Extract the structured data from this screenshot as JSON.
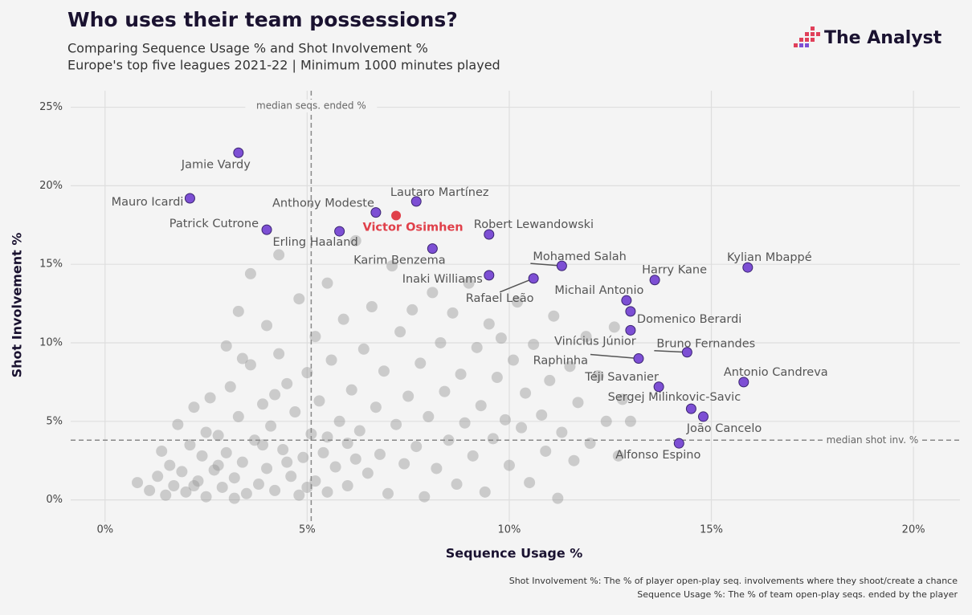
{
  "chart_data": {
    "type": "scatter",
    "title": "Who uses their team possessions?",
    "subtitle": [
      "Comparing Sequence Usage % and Shot Involvement %",
      "Europe's top five leagues 2021-22 | Minimum 1000 minutes played"
    ],
    "logo": "The Analyst",
    "x_label": "Sequence Usage %",
    "y_label": "Shot Involvement %",
    "footnotes": [
      "Shot Involvement %: The % of player open-play seq. involvements where they shoot/create a chance",
      "Sequence Usage %: The % of team open-play seqs. ended by the player"
    ],
    "xlim": [
      -0.85,
      21.15
    ],
    "ylim": [
      -1.4,
      26.05
    ],
    "xticks": [
      {
        "value": 0,
        "label": "0%"
      },
      {
        "value": 5,
        "label": "5%"
      },
      {
        "value": 10,
        "label": "10%"
      },
      {
        "value": 15,
        "label": "15%"
      },
      {
        "value": 20,
        "label": "20%"
      }
    ],
    "yticks": [
      {
        "value": 0,
        "label": "0%"
      },
      {
        "value": 5,
        "label": "5%"
      },
      {
        "value": 10,
        "label": "10%"
      },
      {
        "value": 15,
        "label": "15%"
      },
      {
        "value": 20,
        "label": "20%"
      },
      {
        "value": 25,
        "label": "25%"
      }
    ],
    "grid": true,
    "x_median": {
      "value": 5.1,
      "label": "median seqs. ended %"
    },
    "y_median": {
      "value": 3.8,
      "label": "median shot inv. %"
    },
    "color": "#8f8f8f",
    "x": [
      0.8,
      1.1,
      1.3,
      1.5,
      1.6,
      1.7,
      1.8,
      1.9,
      2.0,
      2.1,
      2.2,
      2.3,
      2.4,
      2.5,
      2.6,
      2.7,
      2.8,
      2.9,
      3.0,
      3.0,
      3.1,
      3.2,
      3.3,
      3.3,
      3.4,
      3.5,
      3.6,
      3.6,
      3.7,
      3.8,
      3.9,
      4.0,
      4.0,
      4.1,
      4.2,
      4.3,
      4.3,
      4.4,
      4.5,
      4.6,
      4.7,
      4.8,
      4.8,
      4.9,
      5.0,
      5.1,
      5.2,
      5.2,
      5.3,
      5.4,
      5.5,
      5.5,
      5.6,
      5.7,
      5.8,
      5.9,
      6.0,
      6.0,
      6.1,
      6.2,
      6.3,
      6.4,
      6.5,
      6.6,
      6.7,
      6.8,
      6.9,
      7.0,
      7.1,
      7.2,
      7.3,
      7.4,
      7.5,
      7.6,
      7.7,
      7.8,
      7.9,
      8.0,
      8.1,
      8.2,
      8.3,
      8.4,
      8.5,
      8.6,
      8.7,
      8.8,
      8.9,
      9.0,
      9.1,
      9.2,
      9.3,
      9.4,
      9.5,
      9.6,
      9.7,
      9.8,
      9.9,
      10.0,
      10.1,
      10.2,
      10.3,
      10.4,
      10.5,
      10.6,
      10.8,
      10.9,
      11.0,
      11.1,
      11.2,
      11.3,
      11.5,
      11.6,
      11.7,
      11.9,
      12.0,
      12.2,
      12.4,
      12.6,
      12.7,
      12.8,
      13.0,
      1.4,
      2.2,
      2.8,
      3.2,
      3.9,
      4.5,
      5.0,
      5.5,
      6.2,
      4.2,
      3.4,
      2.5
    ],
    "values": [
      1.1,
      0.6,
      1.5,
      0.3,
      2.2,
      0.9,
      4.8,
      1.8,
      0.5,
      3.5,
      5.9,
      1.2,
      2.8,
      0.2,
      6.5,
      1.9,
      4.1,
      0.8,
      9.8,
      3.0,
      7.2,
      1.4,
      12.0,
      5.3,
      2.4,
      0.4,
      8.6,
      14.4,
      3.8,
      1.0,
      6.1,
      11.1,
      2.0,
      4.7,
      0.6,
      9.3,
      15.6,
      3.2,
      7.4,
      1.5,
      5.6,
      12.8,
      0.3,
      2.7,
      8.1,
      4.2,
      10.4,
      1.2,
      6.3,
      3.0,
      13.8,
      0.5,
      8.9,
      2.1,
      5.0,
      11.5,
      3.6,
      0.9,
      7.0,
      16.5,
      4.4,
      9.6,
      1.7,
      12.3,
      5.9,
      2.9,
      8.2,
      0.4,
      14.9,
      4.8,
      10.7,
      2.3,
      6.6,
      12.1,
      3.4,
      8.7,
      0.2,
      5.3,
      13.2,
      2.0,
      10.0,
      6.9,
      3.8,
      11.9,
      1.0,
      8.0,
      4.9,
      13.8,
      2.8,
      9.7,
      6.0,
      0.5,
      11.2,
      3.9,
      7.8,
      10.3,
      5.1,
      2.2,
      8.9,
      12.6,
      4.6,
      6.8,
      1.1,
      9.9,
      5.4,
      3.1,
      7.6,
      11.7,
      0.1,
      4.3,
      8.5,
      2.5,
      6.2,
      10.4,
      3.6,
      7.9,
      5.0,
      11.0,
      2.8,
      6.4,
      5.0,
      3.1,
      0.9,
      2.2,
      0.1,
      3.5,
      2.4,
      0.8,
      4.0,
      2.6,
      6.7,
      9.0,
      4.3
    ],
    "labeled": {
      "color": "#7d4fd4",
      "labels": [
        "Jamie Vardy",
        "Mauro Icardi",
        "Patrick Cutrone",
        "Erling Haaland",
        "Anthony Modeste",
        "Lautaro Martínez",
        "Robert Lewandowski",
        "Karim Benzema",
        "Mohamed Salah",
        "Inaki Williams",
        "Rafael Leão",
        "Harry Kane",
        "Kylian Mbappé",
        "Michail Antonio",
        "Domenico Berardi",
        "Vinícius Júnior",
        "Bruno Fernandes",
        "Raphinha",
        "Antonio Candreva",
        "Téji Savanier",
        "Sergej Milinkovic-Savic",
        "João Cancelo",
        "Alfonso Espino"
      ],
      "x": [
        3.3,
        2.1,
        4.0,
        5.8,
        6.7,
        7.7,
        9.5,
        8.1,
        11.3,
        9.5,
        10.6,
        13.6,
        15.9,
        12.9,
        13.0,
        13.0,
        14.4,
        13.2,
        15.8,
        13.7,
        14.5,
        14.8,
        14.2
      ],
      "values": [
        22.1,
        19.2,
        17.2,
        17.1,
        18.3,
        19.0,
        16.9,
        16.0,
        14.9,
        14.3,
        14.1,
        14.0,
        14.8,
        12.7,
        12.0,
        10.8,
        9.4,
        9.0,
        7.5,
        7.2,
        5.8,
        5.3,
        3.6
      ]
    },
    "highlight": {
      "label": "Victor Osimhen",
      "x": 7.2,
      "value": 18.1,
      "color": "#e0404a"
    }
  }
}
